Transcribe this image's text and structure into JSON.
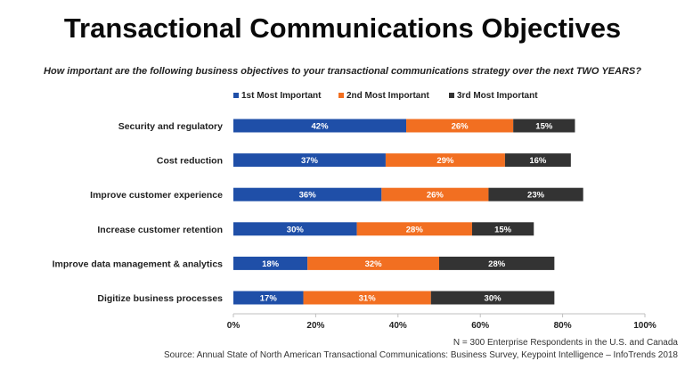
{
  "page": {
    "title": "Transactional Communications Objectives",
    "subtitle": "How important are the following business objectives to your transactional communications strategy over the next TWO YEARS?",
    "note_sample": "N = 300 Enterprise Respondents in the U.S. and Canada",
    "note_source": "Source: Annual State of North American Transactional Communications: Business Survey, Keypoint Intelligence – InfoTrends 2018"
  },
  "chart_data": {
    "type": "bar",
    "orientation": "horizontal",
    "stacked": true,
    "title": "Transactional Communications Objectives",
    "categories": [
      "Security and regulatory",
      "Cost reduction",
      "Improve customer experience",
      "Increase customer retention",
      "Improve data management & analytics",
      "Digitize business processes"
    ],
    "series": [
      {
        "name": "1st Most Important",
        "color": "#1f4fa8",
        "values": [
          42,
          37,
          36,
          30,
          18,
          17
        ],
        "labels": [
          "42%",
          "37%",
          "36%",
          "30%",
          "18%",
          "17%"
        ]
      },
      {
        "name": "2nd Most Important",
        "color": "#f26f21",
        "values": [
          26,
          29,
          26,
          28,
          32,
          31
        ],
        "labels": [
          "26%",
          "29%",
          "26%",
          "28%",
          "32%",
          "31%"
        ]
      },
      {
        "name": "3rd Most Important",
        "color": "#333333",
        "values": [
          15,
          16,
          23,
          15,
          28,
          30
        ],
        "labels": [
          "15%",
          "16%",
          "23%",
          "15%",
          "28%",
          "30%"
        ]
      }
    ],
    "xlim": [
      0,
      100
    ],
    "xticks": [
      "0%",
      "20%",
      "40%",
      "60%",
      "80%",
      "100%"
    ],
    "legend_position": "top",
    "grid": false
  }
}
